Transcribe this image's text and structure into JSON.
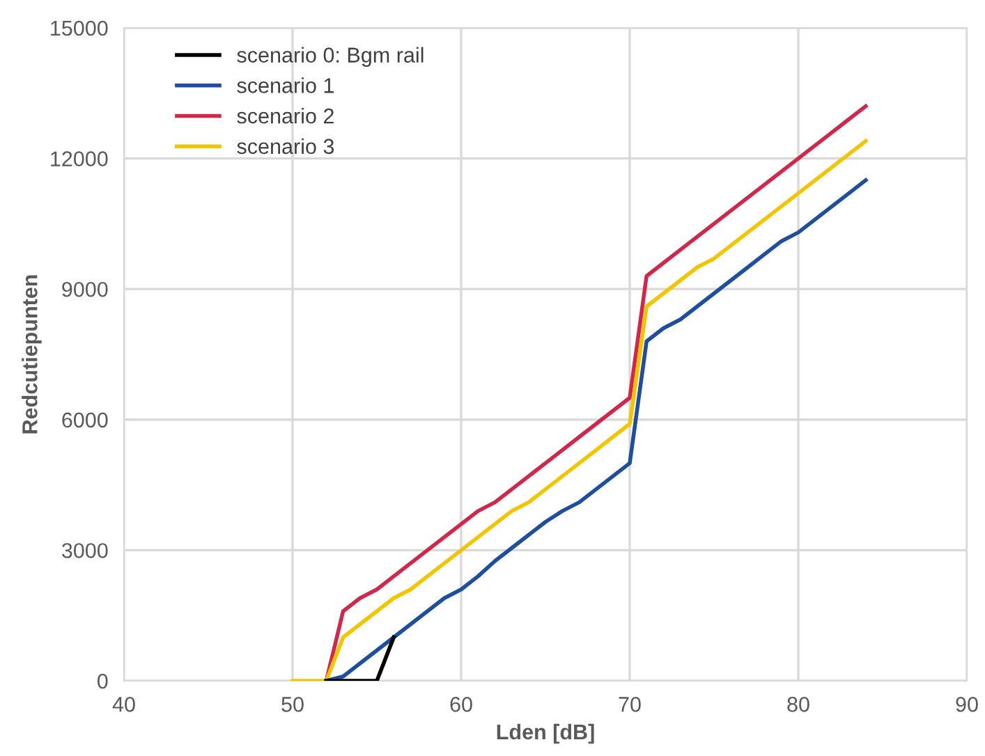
{
  "chart_data": {
    "type": "line",
    "xlabel": "Lden [dB]",
    "ylabel": "Redcutiepunten",
    "xlim": [
      40,
      90
    ],
    "xticks": [
      40,
      50,
      60,
      70,
      80,
      90
    ],
    "ylim": [
      0,
      15000
    ],
    "yticks": [
      0,
      3000,
      6000,
      9000,
      12000,
      15000
    ],
    "grid": true,
    "legend": "top left",
    "marker": "none",
    "line_style": "solid",
    "series": [
      {
        "name": "scenario 0: Bgm rail",
        "color": "#000000",
        "x": [
          52,
          53,
          54,
          55,
          56
        ],
        "values": [
          0,
          0,
          0,
          0,
          1000
        ]
      },
      {
        "name": "scenario 1",
        "color": "#1f4e9c",
        "x": [
          52,
          53,
          54,
          55,
          56,
          57,
          58,
          59,
          60,
          61,
          62,
          63,
          64,
          65,
          66,
          67,
          68,
          69,
          70,
          71,
          72,
          73,
          74,
          75,
          76,
          77,
          78,
          79,
          80,
          81,
          82,
          83,
          84
        ],
        "values": [
          0,
          100,
          400,
          700,
          1000,
          1300,
          1600,
          1900,
          2100,
          2400,
          2750,
          3050,
          3350,
          3650,
          3900,
          4100,
          4400,
          4700,
          5000,
          7800,
          8100,
          8300,
          8600,
          8900,
          9200,
          9500,
          9800,
          10100,
          10300,
          10600,
          10900,
          11200,
          11500
        ]
      },
      {
        "name": "scenario 2",
        "color": "#d0284b",
        "x": [
          52,
          53,
          54,
          55,
          56,
          57,
          58,
          59,
          60,
          61,
          62,
          63,
          64,
          65,
          66,
          67,
          68,
          69,
          70,
          71,
          72,
          73,
          74,
          75,
          76,
          77,
          78,
          79,
          80,
          81,
          82,
          83,
          84
        ],
        "values": [
          0,
          1600,
          1900,
          2100,
          2400,
          2700,
          3000,
          3300,
          3600,
          3900,
          4100,
          4400,
          4700,
          5000,
          5300,
          5600,
          5900,
          6200,
          6500,
          9300,
          9600,
          9900,
          10200,
          10500,
          10800,
          11100,
          11400,
          11700,
          12000,
          12300,
          12600,
          12900,
          13200
        ]
      },
      {
        "name": "scenario 3",
        "color": "#f2c500",
        "x": [
          50,
          51,
          52,
          53,
          54,
          55,
          56,
          57,
          58,
          59,
          60,
          61,
          62,
          63,
          64,
          65,
          66,
          67,
          68,
          69,
          70,
          71,
          72,
          73,
          74,
          75,
          76,
          77,
          78,
          79,
          80,
          81,
          82,
          83,
          84
        ],
        "values": [
          0,
          0,
          0,
          1000,
          1300,
          1600,
          1900,
          2100,
          2400,
          2700,
          3000,
          3300,
          3600,
          3900,
          4100,
          4400,
          4700,
          5000,
          5300,
          5600,
          5900,
          8600,
          8900,
          9200,
          9500,
          9700,
          10000,
          10300,
          10600,
          10900,
          11200,
          11500,
          11800,
          12100,
          12400
        ]
      }
    ]
  }
}
